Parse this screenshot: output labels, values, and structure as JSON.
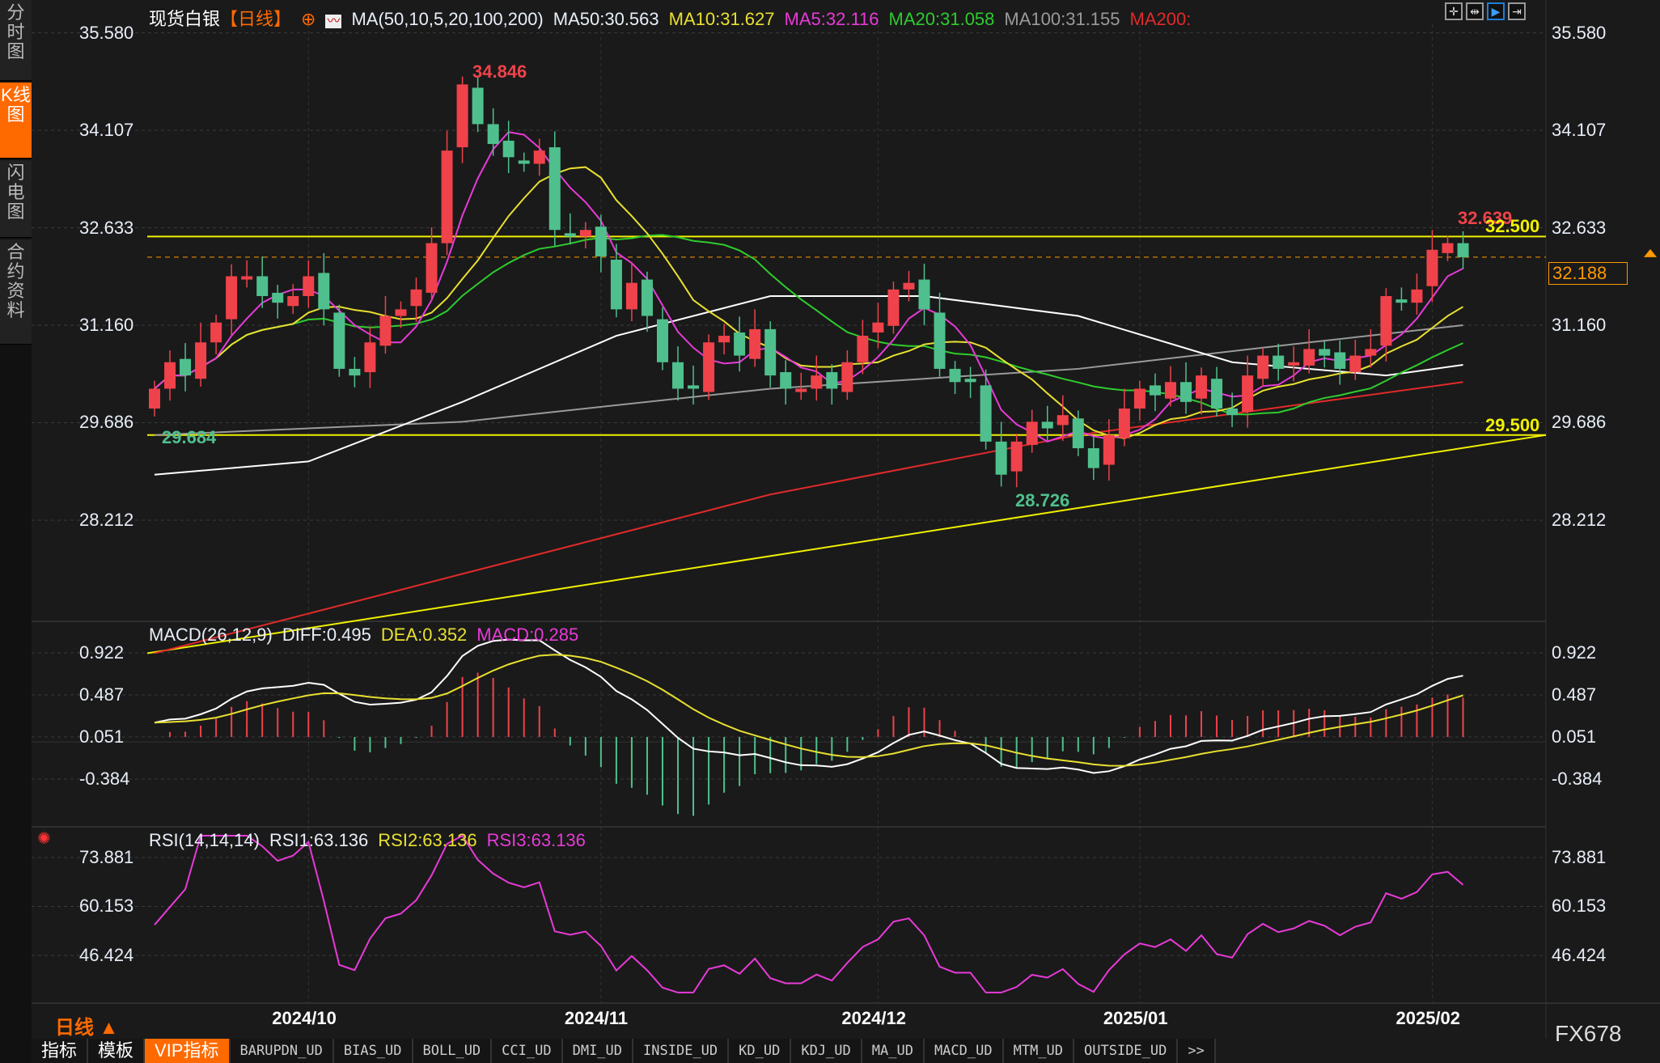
{
  "sidebar": {
    "tabs": [
      {
        "label": "分时图",
        "active": false
      },
      {
        "label": "K线图",
        "active": true
      },
      {
        "label": "闪电图",
        "active": false
      },
      {
        "label": "合约资料",
        "active": false
      }
    ]
  },
  "header": {
    "symbol": "现货白银",
    "period": "【日线】",
    "ma_title": "MA(50,10,5,20,100,200)",
    "ma50": "MA50:30.563",
    "ma10": "MA10:31.627",
    "ma5": "MA5:32.116",
    "ma20": "MA20:31.058",
    "ma100": "MA100:31.155",
    "ma200": "MA200:"
  },
  "toolbar": {
    "icons": [
      "crosshair-icon",
      "zoom-range-icon",
      "play-icon",
      "move-right-icon"
    ]
  },
  "colors": {
    "up": "#f0424a",
    "down": "#4fc08d",
    "ma5": "#e83ad8",
    "ma10": "#e8e030",
    "ma20": "#2ecc2e",
    "ma50": "#ffffff",
    "ma100": "#9a9a9a",
    "ma200": "#e02a2a",
    "level": "#f0f000",
    "accent": "#ff6a00"
  },
  "price_axis": {
    "labels": [
      "35.580",
      "34.107",
      "32.633",
      "31.160",
      "29.686",
      "28.212"
    ],
    "values": [
      35.58,
      34.107,
      32.633,
      31.16,
      29.686,
      28.212
    ]
  },
  "annotations": {
    "high": "34.846",
    "low": "28.726",
    "left_low": "29.684",
    "recent_high": "32.639",
    "level_top": "32.500",
    "level_bottom": "29.500",
    "current_price": "32.188"
  },
  "macd": {
    "title": "MACD(26,12,9)",
    "diff": "DIFF:0.495",
    "dea": "DEA:0.352",
    "macd": "MACD:0.285",
    "labels": [
      "0.922",
      "0.487",
      "0.051",
      "-0.384"
    ],
    "values": [
      0.922,
      0.487,
      0.051,
      -0.384
    ]
  },
  "rsi": {
    "title": "RSI(14,14,14)",
    "rsi1": "RSI1:63.136",
    "rsi2": "RSI2:63.136",
    "rsi3": "RSI3:63.136",
    "labels": [
      "73.881",
      "60.153",
      "46.424"
    ],
    "values": [
      73.881,
      60.153,
      46.424
    ]
  },
  "dates": [
    "2024/10",
    "2024/11",
    "2024/12",
    "2025/01",
    "2025/02"
  ],
  "date_index": [
    10,
    29,
    47,
    64,
    83
  ],
  "period_label": "日线 ▲",
  "brand": "FX678",
  "bottom_tabs": [
    "指标",
    "模板",
    "VIP指标",
    "BARUPDN_UD",
    "BIAS_UD",
    "BOLL_UD",
    "CCI_UD",
    "DMI_UD",
    "INSIDE_UD",
    "KD_UD",
    "KDJ_UD",
    "MA_UD",
    "MACD_UD",
    "MTM_UD",
    "OUTSIDE_UD",
    ">>"
  ],
  "chart_data": {
    "type": "candlestick",
    "closes": [
      30.2,
      30.6,
      30.4,
      30.9,
      31.2,
      31.9,
      31.9,
      31.6,
      31.5,
      31.6,
      31.9,
      31.4,
      30.5,
      30.4,
      30.9,
      31.3,
      31.4,
      31.7,
      32.4,
      33.8,
      34.8,
      34.2,
      33.9,
      33.7,
      33.6,
      33.8,
      32.6,
      32.5,
      32.6,
      32.2,
      31.4,
      31.8,
      31.3,
      30.6,
      30.2,
      30.2,
      30.9,
      31.0,
      30.7,
      31.1,
      30.4,
      30.2,
      30.2,
      30.4,
      30.2,
      30.6,
      31.0,
      31.2,
      31.7,
      31.8,
      31.4,
      30.5,
      30.3,
      30.3,
      29.4,
      28.9,
      29.4,
      29.7,
      29.6,
      29.8,
      29.3,
      29.0,
      29.5,
      29.9,
      30.2,
      30.1,
      30.3,
      30.0,
      30.4,
      29.9,
      29.8,
      30.4,
      30.7,
      30.5,
      30.6,
      30.8,
      30.7,
      30.5,
      30.7,
      30.8,
      31.6,
      31.5,
      31.7,
      32.3,
      32.4,
      32.188
    ],
    "ma50": [
      [
        0,
        28.9
      ],
      [
        10,
        29.1
      ],
      [
        20,
        30.0
      ],
      [
        30,
        31.0
      ],
      [
        40,
        31.6
      ],
      [
        50,
        31.6
      ],
      [
        60,
        31.3
      ],
      [
        70,
        30.6
      ],
      [
        80,
        30.4
      ],
      [
        85,
        30.56
      ]
    ],
    "ma100": [
      [
        0,
        29.5
      ],
      [
        20,
        29.7
      ],
      [
        40,
        30.2
      ],
      [
        60,
        30.5
      ],
      [
        75,
        30.9
      ],
      [
        85,
        31.16
      ]
    ],
    "ma200": [
      [
        0,
        26.2
      ],
      [
        20,
        27.4
      ],
      [
        40,
        28.6
      ],
      [
        60,
        29.5
      ],
      [
        85,
        30.3
      ]
    ],
    "levels": [
      32.5,
      29.5
    ],
    "trendline": [
      [
        0,
        26.4
      ],
      [
        85,
        29.5
      ]
    ]
  }
}
